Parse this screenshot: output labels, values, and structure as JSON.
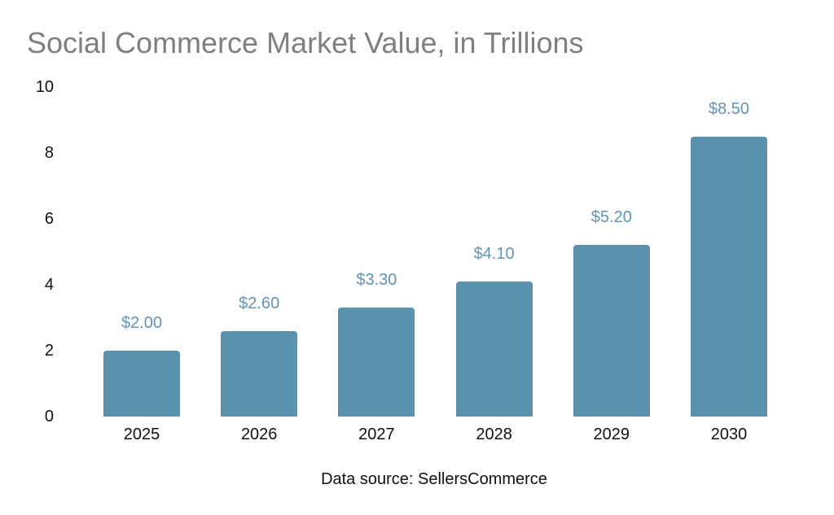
{
  "chart": {
    "title": "Social Commerce Market Value, in Trillions",
    "source": "Data source: SellersCommerce"
  },
  "chart_data": {
    "type": "bar",
    "title": "Social Commerce Market Value, in Trillions",
    "categories": [
      "2025",
      "2026",
      "2027",
      "2028",
      "2029",
      "2030"
    ],
    "values": [
      2.0,
      2.6,
      3.3,
      4.1,
      5.2,
      8.5
    ],
    "data_labels": [
      "$2.00",
      "$2.60",
      "$3.30",
      "$4.10",
      "$5.20",
      "$8.50"
    ],
    "xlabel": "",
    "ylabel": "",
    "ylim": [
      0,
      10
    ],
    "yticks": [
      0,
      2,
      4,
      6,
      8,
      10
    ],
    "grid": false,
    "legend": false,
    "annotations": [
      "Data source: SellersCommerce"
    ],
    "bar_color": "#5a91ad",
    "data_label_color": "#6094ba",
    "axis_label_color": "#111111",
    "title_color": "#7f7f7f"
  }
}
